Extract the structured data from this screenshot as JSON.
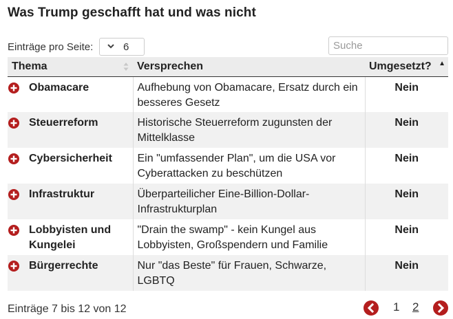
{
  "title": "Was Trump geschafft hat und was nicht",
  "controls": {
    "length_label": "Einträge pro Seite:",
    "length_value": "6",
    "search_placeholder": "Suche"
  },
  "table": {
    "headers": [
      "Thema",
      "Versprechen",
      "Umgesetzt?"
    ],
    "sort_ascending_column": "Umgesetzt?",
    "rows": [
      {
        "topic": "Obamacare",
        "promise": "Aufhebung von Obamacare, Ersatz durch ein besseres Gesetz",
        "done": "Nein"
      },
      {
        "topic": "Steuerreform",
        "promise": "Historische Steuerreform zugunsten der Mittelklasse",
        "done": "Nein"
      },
      {
        "topic": "Cybersicherheit",
        "promise": "Ein \"umfassender Plan\", um die USA vor Cyberattacken zu beschützen",
        "done": "Nein"
      },
      {
        "topic": "Infrastruktur",
        "promise": "Überparteilicher Eine-Billion-Dollar-Infrastrukturplan",
        "done": "Nein"
      },
      {
        "topic": "Lobbyisten und Kungelei",
        "promise": "\"Drain the swamp\" - kein Kungel aus Lobbyisten, Großspendern und Familie",
        "done": "Nein"
      },
      {
        "topic": "Bürgerrechte",
        "promise": "Nur \"das Beste\" für Frauen, Schwarze, LGBTQ",
        "done": "Nein"
      }
    ]
  },
  "footer": {
    "info": "Einträge 7 bis 12 von 12",
    "pages": [
      "1",
      "2"
    ],
    "current_page": "2"
  },
  "colors": {
    "accent": "#b41e1e",
    "header_bg": "#ececec",
    "row_alt_bg": "#f1f1f1"
  },
  "icons": {
    "expand": "plus-circle-icon",
    "length_select": "chevron-down-icon",
    "prev": "chevron-left-circle-icon",
    "next": "chevron-right-circle-icon"
  }
}
